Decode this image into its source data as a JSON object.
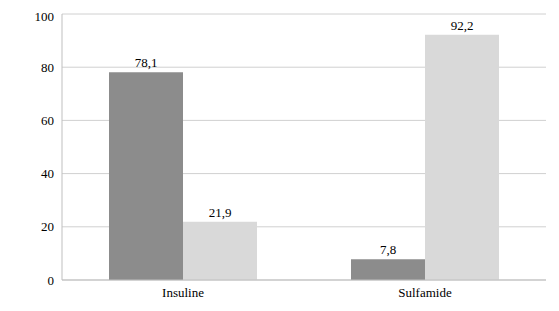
{
  "chart_data": {
    "type": "bar",
    "categories": [
      "Insuline",
      "Sulfamide"
    ],
    "series": [
      {
        "color": "#8c8c8c",
        "values": [
          78.1,
          7.8
        ],
        "value_labels": [
          "78,1",
          "7,8"
        ]
      },
      {
        "color": "#d9d9d9",
        "values": [
          21.9,
          92.2
        ],
        "value_labels": [
          "21,9",
          "92,2"
        ]
      }
    ],
    "ylim": [
      0,
      100
    ],
    "yticks": [
      0,
      20,
      40,
      60,
      80,
      100
    ],
    "grid": true,
    "data_labels": true
  }
}
